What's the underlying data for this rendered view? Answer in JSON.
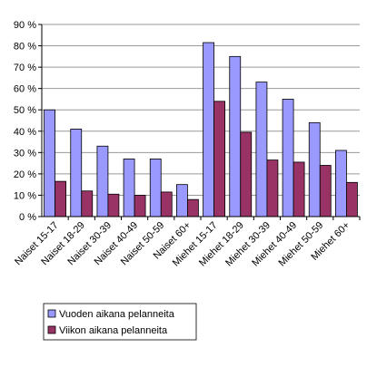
{
  "chart_data": {
    "type": "bar",
    "categories": [
      "Naiset 15-17",
      "Naiset 18-29",
      "Naiset 30-39",
      "Naiset 40-49",
      "Naiset 50-59",
      "Naiset 60+",
      "Miehet 15-17",
      "Miehet 18-29",
      "Miehet 30-39",
      "Miehet 40-49",
      "Miehet 50-59",
      "Miehet 60+"
    ],
    "series": [
      {
        "name": "Vuoden aikana pelanneita",
        "color": "#9999ff",
        "values": [
          50,
          41,
          33,
          27,
          27,
          15,
          81.5,
          75,
          63,
          55,
          44,
          31
        ]
      },
      {
        "name": "Viikon aikana pelanneita",
        "color": "#993366",
        "values": [
          16.5,
          12,
          10.5,
          10,
          11.5,
          8,
          54,
          39.5,
          26.5,
          25.5,
          24,
          16
        ]
      }
    ],
    "ylim": [
      0,
      90
    ],
    "yticks": [
      {
        "value": 0,
        "label": "0 %"
      },
      {
        "value": 10,
        "label": "10 %"
      },
      {
        "value": 20,
        "label": "20 %"
      },
      {
        "value": 30,
        "label": "30 %"
      },
      {
        "value": 40,
        "label": "40 %"
      },
      {
        "value": 50,
        "label": "50 %"
      },
      {
        "value": 60,
        "label": "60 %"
      },
      {
        "value": 70,
        "label": "70 %"
      },
      {
        "value": 80,
        "label": "80 %"
      },
      {
        "value": 90,
        "label": "90 %"
      }
    ],
    "grid": true,
    "legend": "bottom-left"
  }
}
